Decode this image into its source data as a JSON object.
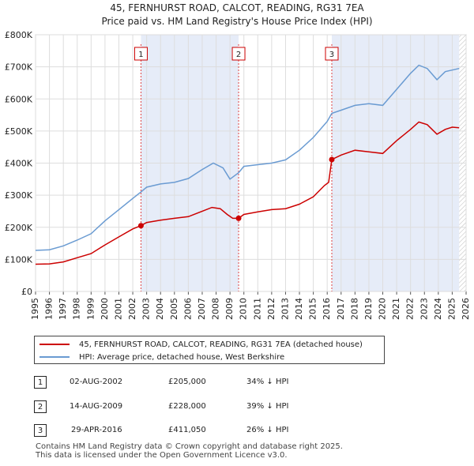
{
  "chart_data": {
    "type": "line",
    "title": "45, FERNHURST ROAD, CALCOT, READING, RG31 7EA",
    "subtitle": "Price paid vs. HM Land Registry's House Price Index (HPI)",
    "xlabel": "",
    "ylabel": "",
    "xlim": [
      1995,
      2026
    ],
    "ylim": [
      0,
      800000
    ],
    "x_ticks": [
      1995,
      1996,
      1997,
      1998,
      1999,
      2000,
      2001,
      2002,
      2003,
      2004,
      2005,
      2006,
      2007,
      2008,
      2009,
      2010,
      2011,
      2012,
      2013,
      2014,
      2015,
      2016,
      2017,
      2018,
      2019,
      2020,
      2021,
      2022,
      2023,
      2024,
      2025,
      2026
    ],
    "y_ticks": [
      {
        "value": 0,
        "label": "£0"
      },
      {
        "value": 100000,
        "label": "£100K"
      },
      {
        "value": 200000,
        "label": "£200K"
      },
      {
        "value": 300000,
        "label": "£300K"
      },
      {
        "value": 400000,
        "label": "£400K"
      },
      {
        "value": 500000,
        "label": "£500K"
      },
      {
        "value": 600000,
        "label": "£600K"
      },
      {
        "value": 700000,
        "label": "£700K"
      },
      {
        "value": 800000,
        "label": "£800K"
      }
    ],
    "grid": true,
    "series": [
      {
        "name": "45, FERNHURST ROAD, CALCOT, READING, RG31 7EA (detached house)",
        "color": "#cc0000",
        "points": [
          [
            1995.0,
            85000
          ],
          [
            1996.0,
            86000
          ],
          [
            1997.0,
            92000
          ],
          [
            1998.0,
            105000
          ],
          [
            1999.0,
            118000
          ],
          [
            2000.0,
            145000
          ],
          [
            2001.0,
            170000
          ],
          [
            2002.0,
            195000
          ],
          [
            2002.59,
            205000
          ],
          [
            2003.0,
            215000
          ],
          [
            2004.0,
            222000
          ],
          [
            2005.0,
            228000
          ],
          [
            2006.0,
            233000
          ],
          [
            2007.0,
            250000
          ],
          [
            2007.7,
            262000
          ],
          [
            2008.3,
            258000
          ],
          [
            2008.8,
            240000
          ],
          [
            2009.2,
            228000
          ],
          [
            2009.62,
            228000
          ],
          [
            2010.0,
            240000
          ],
          [
            2011.0,
            248000
          ],
          [
            2012.0,
            255000
          ],
          [
            2013.0,
            258000
          ],
          [
            2014.0,
            272000
          ],
          [
            2015.0,
            295000
          ],
          [
            2015.8,
            330000
          ],
          [
            2016.1,
            340000
          ],
          [
            2016.33,
            411050
          ],
          [
            2017.0,
            425000
          ],
          [
            2018.0,
            440000
          ],
          [
            2019.0,
            435000
          ],
          [
            2020.0,
            430000
          ],
          [
            2021.0,
            470000
          ],
          [
            2022.0,
            505000
          ],
          [
            2022.6,
            528000
          ],
          [
            2023.2,
            520000
          ],
          [
            2023.9,
            490000
          ],
          [
            2024.5,
            505000
          ],
          [
            2025.0,
            512000
          ],
          [
            2025.5,
            510000
          ]
        ]
      },
      {
        "name": "HPI: Average price, detached house, West Berkshire",
        "color": "#6a9bd2",
        "points": [
          [
            1995.0,
            128000
          ],
          [
            1996.0,
            130000
          ],
          [
            1997.0,
            142000
          ],
          [
            1998.0,
            160000
          ],
          [
            1999.0,
            180000
          ],
          [
            2000.0,
            220000
          ],
          [
            2001.0,
            255000
          ],
          [
            2002.0,
            290000
          ],
          [
            2002.59,
            310000
          ],
          [
            2003.0,
            325000
          ],
          [
            2004.0,
            335000
          ],
          [
            2005.0,
            340000
          ],
          [
            2006.0,
            352000
          ],
          [
            2007.0,
            380000
          ],
          [
            2007.8,
            400000
          ],
          [
            2008.5,
            385000
          ],
          [
            2009.0,
            350000
          ],
          [
            2009.62,
            370000
          ],
          [
            2010.0,
            390000
          ],
          [
            2011.0,
            395000
          ],
          [
            2012.0,
            400000
          ],
          [
            2013.0,
            410000
          ],
          [
            2014.0,
            440000
          ],
          [
            2015.0,
            480000
          ],
          [
            2016.0,
            530000
          ],
          [
            2016.33,
            555000
          ],
          [
            2017.0,
            565000
          ],
          [
            2018.0,
            580000
          ],
          [
            2019.0,
            585000
          ],
          [
            2020.0,
            580000
          ],
          [
            2021.0,
            630000
          ],
          [
            2022.0,
            680000
          ],
          [
            2022.6,
            705000
          ],
          [
            2023.2,
            695000
          ],
          [
            2023.9,
            660000
          ],
          [
            2024.5,
            685000
          ],
          [
            2025.0,
            690000
          ],
          [
            2025.5,
            695000
          ]
        ]
      }
    ],
    "sales": [
      {
        "label": "1",
        "x": 2002.59,
        "price": 205000
      },
      {
        "label": "2",
        "x": 2009.62,
        "price": 228000
      },
      {
        "label": "3",
        "x": 2016.33,
        "price": 411050
      }
    ],
    "shaded_ranges": [
      [
        2002.59,
        2009.62
      ],
      [
        2016.33,
        2025.5
      ]
    ],
    "hatched_from": 2025.5
  },
  "legend": {
    "items": [
      {
        "label": "45, FERNHURST ROAD, CALCOT, READING, RG31 7EA (detached house)",
        "color": "#cc0000"
      },
      {
        "label": "HPI: Average price, detached house, West Berkshire",
        "color": "#6a9bd2"
      }
    ]
  },
  "sales_table": [
    {
      "num": "1",
      "date": "02-AUG-2002",
      "price": "£205,000",
      "diff": "34% ↓ HPI"
    },
    {
      "num": "2",
      "date": "14-AUG-2009",
      "price": "£228,000",
      "diff": "39% ↓ HPI"
    },
    {
      "num": "3",
      "date": "29-APR-2016",
      "price": "£411,050",
      "diff": "26% ↓ HPI"
    }
  ],
  "footer": {
    "line1": "Contains HM Land Registry data © Crown copyright and database right 2025.",
    "line2": "This data is licensed under the Open Government Licence v3.0."
  }
}
